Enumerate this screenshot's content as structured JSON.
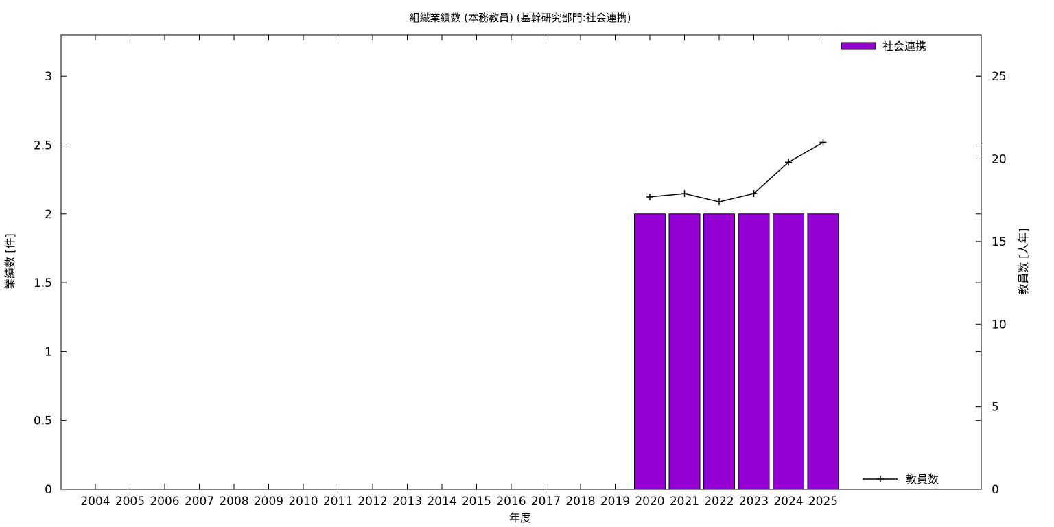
{
  "chart_data": {
    "type": "bar",
    "title": "組織業績数 (本務教員) (基幹研究部門:社会連携)",
    "xlabel": "年度",
    "ylabel": "業績数 [件]",
    "y2label": "教員数 [人年]",
    "categories": [
      "2004",
      "2005",
      "2006",
      "2007",
      "2008",
      "2009",
      "2010",
      "2011",
      "2012",
      "2013",
      "2014",
      "2015",
      "2016",
      "2017",
      "2018",
      "2019",
      "2020",
      "2021",
      "2022",
      "2023",
      "2024",
      "2025"
    ],
    "ylim": [
      0,
      3.3
    ],
    "y2lim": [
      0,
      27.5
    ],
    "y_ticks": [
      "0",
      "0.5",
      "1",
      "1.5",
      "2",
      "2.5",
      "3"
    ],
    "y_tick_values": [
      0,
      0.5,
      1,
      1.5,
      2,
      2.5,
      3
    ],
    "y2_ticks": [
      "0",
      "5",
      "10",
      "15",
      "20",
      "25"
    ],
    "y2_tick_values": [
      0,
      5,
      10,
      15,
      20,
      25
    ],
    "series": [
      {
        "name": "社会連携",
        "kind": "bar",
        "color": "#9400d3",
        "values": [
          null,
          null,
          null,
          null,
          null,
          null,
          null,
          null,
          null,
          null,
          null,
          null,
          null,
          null,
          null,
          null,
          2,
          2,
          2,
          2,
          2,
          2
        ]
      },
      {
        "name": "教員数",
        "kind": "line",
        "axis": "y2",
        "color": "#000000",
        "values": [
          null,
          null,
          null,
          null,
          null,
          null,
          null,
          null,
          null,
          null,
          null,
          null,
          null,
          null,
          null,
          null,
          17.7,
          17.9,
          17.4,
          17.9,
          19.8,
          21.0
        ]
      }
    ],
    "legend": [
      {
        "label": "社会連携",
        "position": "top-right"
      },
      {
        "label": "教員数",
        "position": "bottom-right"
      }
    ],
    "grid": false
  }
}
